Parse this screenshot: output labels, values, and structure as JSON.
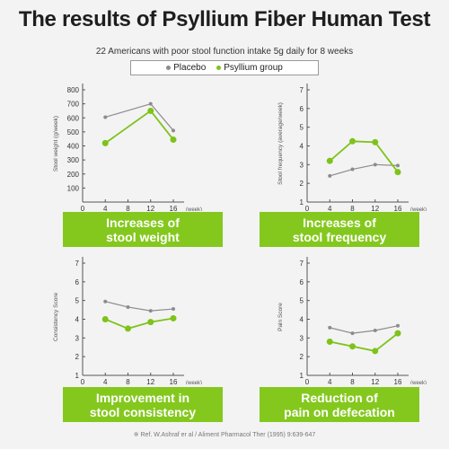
{
  "title": "The results of Psyllium Fiber Human Test",
  "subtitle": "22 Americans with poor stool function intake 5g daily for 8 weeks",
  "legend": {
    "placebo": "Placebo",
    "psyllium": "Psyllium group"
  },
  "colors": {
    "placebo": "#8c8c8c",
    "psyllium": "#7dc31a",
    "banner": "#84c81e"
  },
  "banners": {
    "weight": "Increases of\nstool weight",
    "frequency": "Increases of\nstool frequency",
    "consistency": "Improvement in\nstool consistency",
    "pain": "Reduction of\npain on defecation"
  },
  "reference": "※ Ref. W.Ashraf er al / Aliment Pharmacol Ther (1995) 9:639-647",
  "chart_data": [
    {
      "type": "line",
      "xlabel": "(week)",
      "ylabel": "Stool weight (g/week)",
      "x": [
        4,
        8,
        12,
        16
      ],
      "xticks": [
        "0",
        "4",
        "8",
        "12",
        "16"
      ],
      "ylim": [
        0,
        800
      ],
      "yticks": [
        "100",
        "200",
        "300",
        "400",
        "500",
        "600",
        "700",
        "800"
      ],
      "series": [
        {
          "name": "Placebo",
          "values": [
            605,
            null,
            700,
            510
          ]
        },
        {
          "name": "Psyllium group",
          "values": [
            420,
            null,
            650,
            445
          ]
        }
      ]
    },
    {
      "type": "line",
      "xlabel": "(week)",
      "ylabel": "Stool frequency (average/week)",
      "x": [
        4,
        8,
        12,
        16
      ],
      "xticks": [
        "0",
        "4",
        "8",
        "12",
        "16"
      ],
      "ylim": [
        1,
        7
      ],
      "yticks": [
        "1",
        "2",
        "3",
        "4",
        "5",
        "6",
        "7"
      ],
      "series": [
        {
          "name": "Placebo",
          "values": [
            2.4,
            2.75,
            3.0,
            2.95
          ]
        },
        {
          "name": "Psyllium group",
          "values": [
            3.2,
            4.25,
            4.2,
            2.6
          ]
        }
      ]
    },
    {
      "type": "line",
      "xlabel": "(week)",
      "ylabel": "Consistency Score",
      "x": [
        4,
        8,
        12,
        16
      ],
      "xticks": [
        "0",
        "4",
        "8",
        "12",
        "16"
      ],
      "ylim": [
        1,
        7
      ],
      "yticks": [
        "1",
        "2",
        "3",
        "4",
        "5",
        "6",
        "7"
      ],
      "series": [
        {
          "name": "Placebo",
          "values": [
            4.95,
            4.65,
            4.45,
            4.55
          ]
        },
        {
          "name": "Psyllium group",
          "values": [
            4.0,
            3.5,
            3.85,
            4.05
          ]
        }
      ]
    },
    {
      "type": "line",
      "xlabel": "(week)",
      "ylabel": "Pain Score",
      "x": [
        4,
        8,
        12,
        16
      ],
      "xticks": [
        "0",
        "4",
        "8",
        "12",
        "16"
      ],
      "ylim": [
        1,
        7
      ],
      "yticks": [
        "1",
        "2",
        "3",
        "4",
        "5",
        "6",
        "7"
      ],
      "series": [
        {
          "name": "Placebo",
          "values": [
            3.55,
            3.25,
            3.4,
            3.65
          ]
        },
        {
          "name": "Psyllium group",
          "values": [
            2.8,
            2.55,
            2.3,
            3.25
          ]
        }
      ]
    }
  ]
}
